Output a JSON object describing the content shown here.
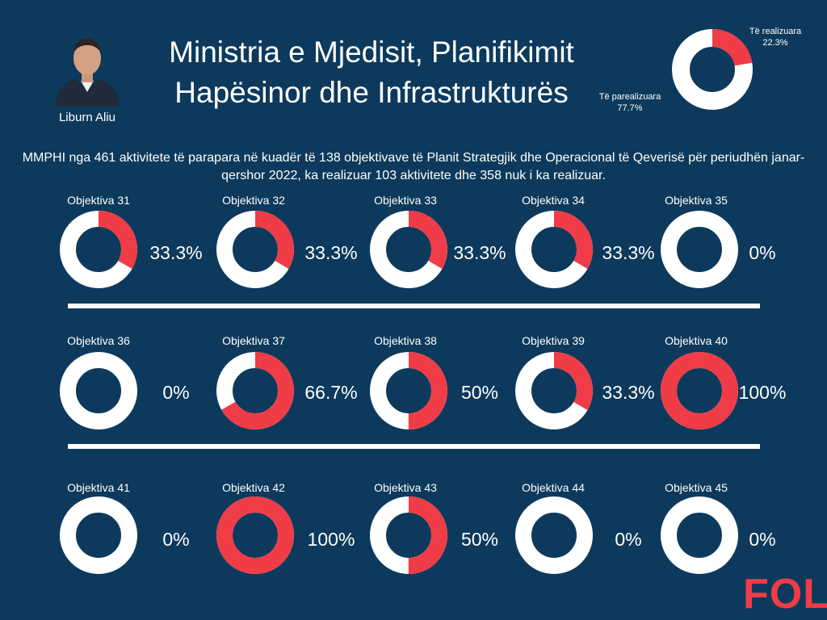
{
  "header": {
    "title_line1": "Ministria e Mjedisit, Planifikimit",
    "title_line2": "Hapësinor dhe Infrastrukturës",
    "person_name": "Liburn Aliu",
    "logo_text": "FOL"
  },
  "summary": {
    "realized_label": "Të realizuara",
    "realized_pct": "22.3%",
    "unrealized_label": "Të parealizuara",
    "unrealized_pct": "77.7%"
  },
  "description": "MMPHI nga 461 aktivitete të parapara në kuadër të 138 objektivave të Planit Strategjik dhe Operacional të Qeverisë për periudhën janar-qershor 2022, ka realizuar 103 aktivitete dhe 358 nuk i ka realizuar.",
  "colors": {
    "background": "#0d3a5c",
    "realized": "#ef3c47",
    "unrealized": "#ffffff"
  },
  "chart_data": [
    {
      "type": "pie",
      "labels": [
        "Të realizuara",
        "Të parealizuara"
      ],
      "values": [
        22.3,
        77.7
      ]
    },
    {
      "type": "pie",
      "categories": [
        "Objektiva 31",
        "Objektiva 32",
        "Objektiva 33",
        "Objektiva 34",
        "Objektiva 35",
        "Objektiva 36",
        "Objektiva 37",
        "Objektiva 38",
        "Objektiva 39",
        "Objektiva 40",
        "Objektiva 41",
        "Objektiva 42",
        "Objektiva 43",
        "Objektiva 44",
        "Objektiva 45"
      ],
      "values": [
        33.3,
        33.3,
        33.3,
        33.3,
        0,
        0,
        66.7,
        50,
        33.3,
        100,
        0,
        100,
        50,
        0,
        0
      ],
      "value_labels": [
        "33.3%",
        "33.3%",
        "33.3%",
        "33.3%",
        "0%",
        "0%",
        "66.7%",
        "50%",
        "33.3%",
        "100%",
        "0%",
        "100%",
        "50%",
        "0%",
        "0%"
      ]
    }
  ]
}
